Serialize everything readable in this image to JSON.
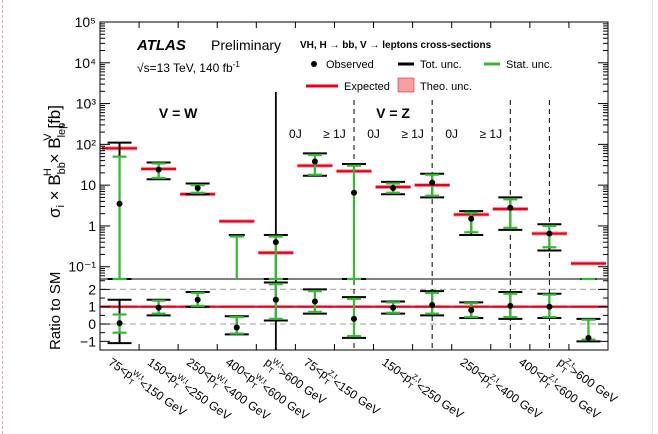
{
  "chart_data": {
    "type": "scatter",
    "header": {
      "brand": "ATLAS",
      "status": "Preliminary",
      "process": "VH, H → bb, V → leptons cross-sections",
      "energy": "√s=13 TeV, 140 fb",
      "energy_sup": "-1"
    },
    "legend": {
      "observed": "Observed",
      "tot": "Tot. unc.",
      "stat": "Stat. unc.",
      "expected": "Expected",
      "theo": "Theo. unc."
    },
    "colors": {
      "expected": "#e8001c",
      "stat": "#33bb33",
      "tot": "#000000",
      "theo": "#f4a0a0",
      "grid": "#999999"
    },
    "main_panel": {
      "ylabel": "σ_i × B^H_bb × B^V_lep [fb]",
      "yscale": "log",
      "ylim": [
        0.05,
        100000
      ],
      "ytick_values": [
        0.1,
        1,
        10,
        100,
        1000,
        10000,
        100000
      ],
      "ytick_labels": [
        "10⁻¹",
        "1",
        "10",
        "10²",
        "10³",
        "10⁴",
        "10⁵"
      ],
      "region_labels": [
        {
          "text": "V = W",
          "bin": 2.0
        },
        {
          "text": "V = Z",
          "bin": 7.5
        }
      ],
      "jet_labels": [
        {
          "text": "0J",
          "bin": 5.0
        },
        {
          "text": "≥ 1J",
          "bin": 6.0
        },
        {
          "text": "0J",
          "bin": 7.0
        },
        {
          "text": "≥ 1J",
          "bin": 8.0
        },
        {
          "text": "0J",
          "bin": 9.0
        },
        {
          "text": "≥ 1J",
          "bin": 10.0
        }
      ]
    },
    "ratio_panel": {
      "ylabel": "Ratio to SM",
      "ylim": [
        -1.5,
        2.6
      ],
      "ytick_values": [
        -1,
        0,
        1,
        2
      ],
      "ytick_labels": [
        "−1",
        "0",
        "1",
        "2"
      ],
      "dashed_lines": [
        0,
        2
      ]
    },
    "categories": [
      "75<pT^W,t<150 GeV",
      "150<pT^W,t<250 GeV",
      "250<pT^W,t<400 GeV",
      "400<pT^W,t<600 GeV",
      "pT^W,t>600 GeV",
      "75<pT^Z,t<150 GeV (0J)",
      "75<pT^Z,t<150 GeV (≥1J)",
      "150<pT^Z,t<250 GeV (0J)",
      "150<pT^Z,t<250 GeV (≥1J)",
      "250<pT^Z,t<400 GeV (0J)",
      "250<pT^Z,t<400 GeV (≥1J)",
      "400<pT^Z,t<600 GeV",
      "pT^Z,t>600 GeV"
    ],
    "x_tick_labels": [
      {
        "pre": "75<p",
        "sup": "W,t",
        "post": "<150 GeV",
        "bin": 0.5
      },
      {
        "pre": "150<p",
        "sup": "W,t",
        "post": "<250 GeV",
        "bin": 1.5
      },
      {
        "pre": "250<p",
        "sup": "W,t",
        "post": "<400 GeV",
        "bin": 2.5
      },
      {
        "pre": "400<p",
        "sup": "W,t",
        "post": "<600 GeV",
        "bin": 3.5
      },
      {
        "pre": "p",
        "sup": "W,t",
        "post": ">600 GeV",
        "bin": 4.5
      },
      {
        "pre": "75<p",
        "sup": "Z,t",
        "post": "<150 GeV",
        "bin": 5.5
      },
      {
        "pre": "150<p",
        "sup": "Z,t",
        "post": "<250 GeV",
        "bin": 7.5
      },
      {
        "pre": "250<p",
        "sup": "Z,t",
        "post": "<400 GeV",
        "bin": 9.5
      },
      {
        "pre": "400<p",
        "sup": "Z,t",
        "post": "<600 GeV",
        "bin": 11.0
      },
      {
        "pre": "p",
        "sup": "Z,t",
        "post": ">600 GeV",
        "bin": 12.0
      }
    ],
    "separators": [
      {
        "bin": 4.5,
        "style": "solid"
      },
      {
        "bin": 6.5,
        "style": "dashed"
      },
      {
        "bin": 8.5,
        "style": "dashed"
      },
      {
        "bin": 10.5,
        "style": "dashed"
      },
      {
        "bin": 11.5,
        "style": "dashed"
      }
    ],
    "series": [
      {
        "name": "Expected",
        "values": [
          80,
          25,
          6,
          1.3,
          0.22,
          30,
          22,
          9,
          10,
          1.9,
          2.6,
          0.65,
          0.12
        ]
      },
      {
        "name": "Observed",
        "values": [
          3.5,
          24,
          8.5,
          null,
          0.4,
          38,
          6.5,
          8.5,
          11.5,
          1.5,
          2.8,
          0.65,
          null
        ],
        "tot_low": [
          0.05,
          14,
          6,
          null,
          0.05,
          17,
          0.05,
          6,
          5,
          0.6,
          0.8,
          0.25,
          null
        ],
        "tot_high": [
          110,
          36,
          11,
          0.6,
          0.6,
          60,
          33,
          12,
          19,
          2.3,
          5,
          1.1,
          0.045
        ],
        "stat_low": [
          0.05,
          15,
          6.5,
          null,
          0.05,
          18,
          0.05,
          6.5,
          5.5,
          0.7,
          0.9,
          0.3,
          null
        ],
        "stat_high": [
          50,
          34,
          10,
          0.55,
          0.55,
          55,
          30,
          11,
          18,
          2.1,
          4.5,
          1.0,
          0.04
        ]
      },
      {
        "name": "Ratio to SM",
        "values": [
          0.05,
          0.95,
          1.4,
          -0.2,
          1.4,
          1.3,
          0.3,
          0.95,
          1.1,
          0.8,
          1.05,
          1.0,
          -0.8
        ],
        "tot_low": [
          -1.1,
          0.5,
          1.0,
          -0.6,
          0.2,
          0.6,
          -0.8,
          0.6,
          0.5,
          0.35,
          0.3,
          0.35,
          -1.0
        ],
        "tot_high": [
          1.4,
          1.4,
          1.85,
          0.45,
          2.4,
          2.0,
          1.55,
          1.3,
          1.9,
          1.25,
          1.85,
          1.75,
          0.3
        ],
        "stat_low": [
          -0.5,
          0.6,
          1.05,
          -0.55,
          0.3,
          0.7,
          -0.7,
          0.65,
          0.6,
          0.4,
          0.4,
          0.4,
          -0.9
        ],
        "stat_high": [
          0.55,
          1.35,
          1.8,
          0.4,
          2.3,
          1.9,
          1.45,
          1.25,
          1.8,
          1.2,
          1.75,
          1.7,
          0.25
        ]
      }
    ]
  }
}
